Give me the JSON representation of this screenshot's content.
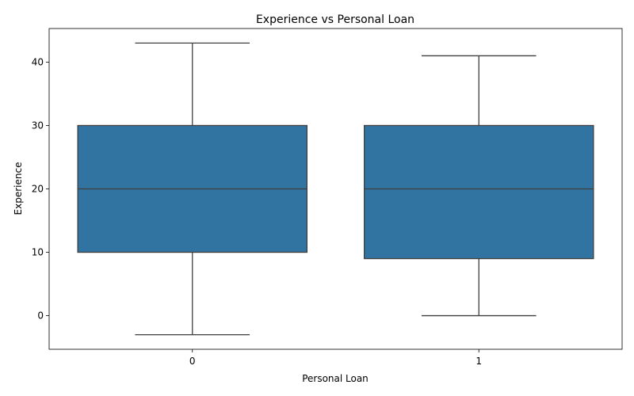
{
  "chart_data": {
    "type": "box",
    "title": "Experience vs Personal Loan",
    "xlabel": "Personal Loan",
    "ylabel": "Experience",
    "categories": [
      "0",
      "1"
    ],
    "boxes": [
      {
        "category": "0",
        "whisker_low": -3,
        "q1": 10,
        "median": 20,
        "q3": 30,
        "whisker_high": 43
      },
      {
        "category": "1",
        "whisker_low": 0,
        "q1": 9,
        "median": 20,
        "q3": 30,
        "whisker_high": 41
      }
    ],
    "ylim": [
      -5.3,
      45.3
    ],
    "yticks": [
      0,
      10,
      20,
      30,
      40
    ],
    "grid": false,
    "colors": {
      "box_fill": "#3274a1",
      "line": "#3f3f3f"
    }
  }
}
